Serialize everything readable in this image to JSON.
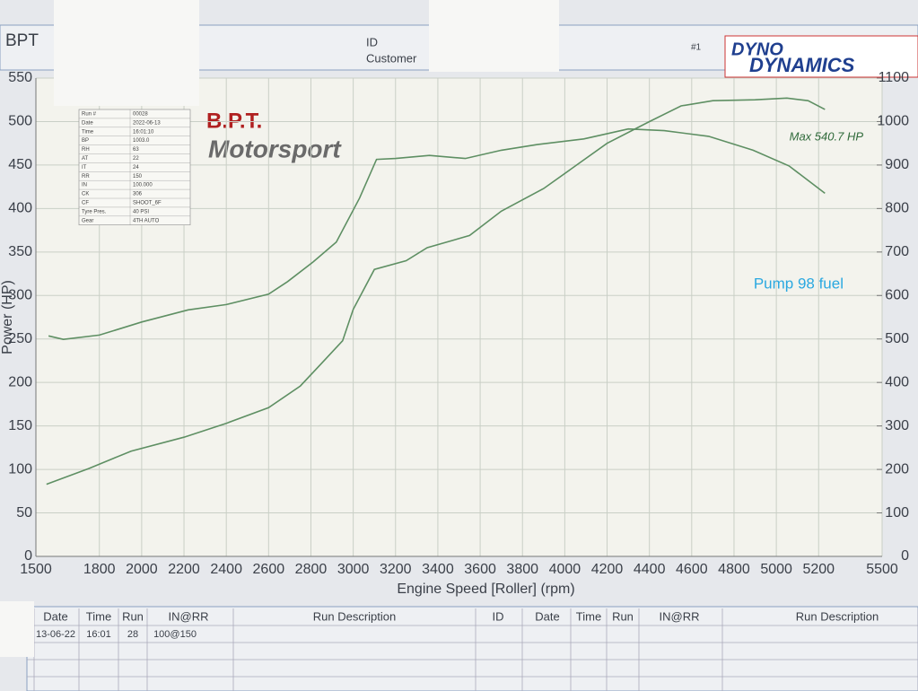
{
  "header": {
    "title": "BPT",
    "id": "ID",
    "customer": "Customer",
    "run_no": "#1",
    "brand": [
      "DYNO",
      "DYNAMICS"
    ]
  },
  "logo": {
    "line1": "B.P.T.",
    "line2": "Motorsport"
  },
  "run_info": [
    [
      "Run #",
      "00028"
    ],
    [
      "Date",
      "2022-06-13"
    ],
    [
      "Time",
      "16:01:10"
    ],
    [
      "BP",
      "1003.0"
    ],
    [
      "RH",
      "63"
    ],
    [
      "AT",
      "22"
    ],
    [
      "IT",
      "24"
    ],
    [
      "RR",
      "150"
    ],
    [
      "IN",
      "100.000"
    ],
    [
      "CK",
      "306"
    ],
    [
      "CF",
      "SHOOT_6F"
    ],
    [
      "Tyre Pres.",
      "40 PSI"
    ],
    [
      "Gear",
      "4TH AUTO"
    ]
  ],
  "run_table": {
    "headers": [
      "Date",
      "Time",
      "Run",
      "IN@RR",
      "Run Description",
      "ID",
      "Date",
      "Time",
      "Run",
      "IN@RR",
      "Run Description"
    ],
    "rows": [
      [
        "13-06-22",
        "16:01",
        "28",
        "100@150"
      ]
    ]
  },
  "chart_data": {
    "type": "line",
    "x_label": "Engine Speed [Roller] (rpm)",
    "y_label": "Power (HP)",
    "annotations": [
      "Max 540.7 HP",
      "Pump 98 fuel"
    ],
    "xlim": [
      1500,
      5500
    ],
    "xticks": [
      1500,
      1800,
      2000,
      2200,
      2400,
      2600,
      2800,
      3000,
      3200,
      3400,
      3600,
      3800,
      4000,
      4200,
      4400,
      4600,
      4800,
      5000,
      5200,
      5500
    ],
    "ylim": [
      0,
      550
    ],
    "yticks": [
      0,
      50,
      100,
      150,
      200,
      250,
      300,
      350,
      400,
      450,
      500,
      550
    ],
    "y2lim": [
      0,
      1100
    ],
    "y2ticks": [
      0,
      100,
      200,
      300,
      400,
      500,
      600,
      700,
      800,
      900,
      1000,
      1100
    ],
    "grid": true,
    "series": [
      {
        "color": "#5e8f63",
        "x": [
          1550,
          1750,
          1950,
          2200,
          2400,
          2600,
          2750,
          2850,
          2950,
          3000,
          3100,
          3250,
          3350,
          3550,
          3700,
          3900,
          4050,
          4200,
          4400,
          4550,
          4700,
          4900,
          5050,
          5150,
          5230
        ],
        "values": [
          83,
          101,
          121,
          137,
          153,
          171,
          196,
          222,
          248,
          284,
          330,
          340,
          355,
          369,
          397,
          423,
          449,
          475,
          500,
          518,
          524,
          525,
          527,
          524,
          514
        ]
      },
      {
        "color": "#5e8f63",
        "axis": "y2",
        "x": [
          1560,
          1630,
          1800,
          2000,
          2220,
          2400,
          2600,
          2690,
          2810,
          2920,
          3030,
          3110,
          3200,
          3360,
          3530,
          3700,
          3870,
          4090,
          4300,
          4470,
          4680,
          4890,
          5060,
          5230
        ],
        "values": [
          507,
          499,
          509,
          539,
          567,
          579,
          603,
          632,
          677,
          723,
          824,
          913,
          915,
          922,
          915,
          934,
          947,
          960,
          983,
          979,
          966,
          934,
          898,
          835
        ]
      }
    ]
  }
}
